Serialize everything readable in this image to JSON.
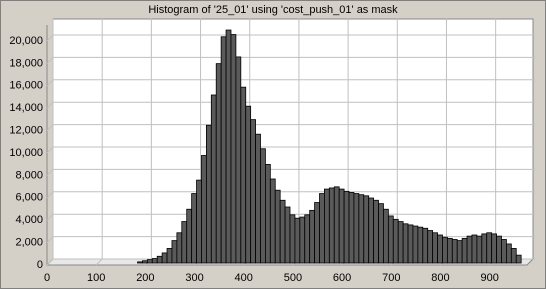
{
  "chart_data": {
    "type": "histogram",
    "title": "Histogram of '25_01' using 'cost_push_01' as mask",
    "bins": [
      180,
      190,
      200,
      210,
      220,
      230,
      240,
      250,
      260,
      270,
      280,
      290,
      300,
      310,
      320,
      330,
      340,
      350,
      360,
      370,
      380,
      390,
      400,
      410,
      420,
      430,
      440,
      450,
      460,
      470,
      480,
      490,
      500,
      510,
      520,
      530,
      540,
      550,
      560,
      570,
      580,
      590,
      600,
      610,
      620,
      630,
      640,
      650,
      660,
      670,
      680,
      690,
      700,
      710,
      720,
      730,
      740,
      750,
      760,
      770,
      780,
      790,
      800,
      810,
      820,
      830,
      840,
      850,
      860,
      870,
      880,
      890,
      900,
      910,
      920,
      930,
      940,
      950,
      960
    ],
    "counts": [
      100,
      200,
      300,
      400,
      600,
      900,
      1300,
      2000,
      2700,
      3700,
      4800,
      6200,
      7400,
      9600,
      12300,
      15000,
      17800,
      20200,
      20800,
      20400,
      18400,
      15700,
      14000,
      12800,
      11500,
      10200,
      8800,
      7500,
      6500,
      5600,
      5000,
      4300,
      4000,
      4100,
      4300,
      4700,
      5400,
      6200,
      6600,
      6700,
      6800,
      6600,
      6400,
      6300,
      6200,
      6100,
      6000,
      5800,
      5600,
      5300,
      4800,
      4200,
      3900,
      3700,
      3500,
      3400,
      3300,
      3200,
      3100,
      2900,
      2700,
      2500,
      2300,
      2200,
      2100,
      2000,
      2200,
      2400,
      2500,
      2400,
      2600,
      2700,
      2600,
      2400,
      2100,
      1700,
      1300,
      700
    ],
    "color": "#5a5a5a",
    "xlim": [
      0,
      980
    ],
    "ylim": [
      0,
      22000
    ],
    "xticks": [
      0,
      100,
      200,
      300,
      400,
      500,
      600,
      700,
      800,
      900
    ],
    "yticks": [
      0,
      {
        "value": 2000,
        "label": "2,000"
      },
      {
        "value": 4000,
        "label": "4,000"
      },
      {
        "value": 6000,
        "label": "6,000"
      },
      {
        "value": 8000,
        "label": "8,000"
      },
      {
        "value": 10000,
        "label": "10,000"
      },
      {
        "value": 12000,
        "label": "12,000"
      },
      {
        "value": 14000,
        "label": "14,000"
      },
      {
        "value": 16000,
        "label": "16,000"
      },
      {
        "value": 18000,
        "label": "18,000"
      },
      {
        "value": 20000,
        "label": "20,000"
      }
    ],
    "grid": true
  }
}
